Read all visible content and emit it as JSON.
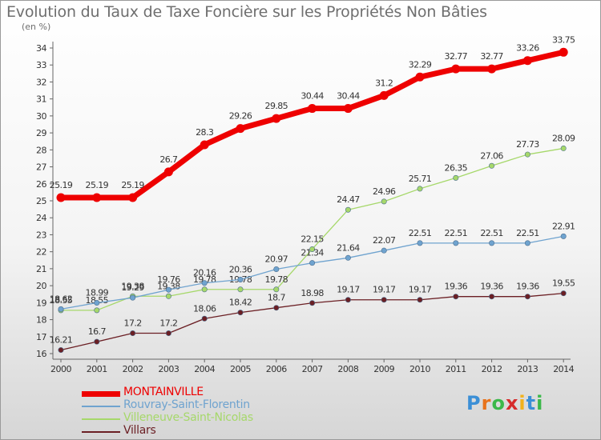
{
  "header": {
    "title": "Evolution du Taux de Taxe Foncière sur les Propriétés Non Bâties",
    "unit": "(en %)"
  },
  "logo": {
    "text": "Proxiti",
    "letter_colors": [
      "#3b8fd6",
      "#e8731c",
      "#3bb84a",
      "#d62b2b",
      "#f2b21c",
      "#3b8fd6",
      "#3bb84a"
    ]
  },
  "chart_data": {
    "type": "line",
    "title": "Evolution du Taux de Taxe Foncière sur les Propriétés Non Bâties",
    "ylabel": "(en %)",
    "xlabel": "",
    "x": [
      "2000",
      "2001",
      "2002",
      "2003",
      "2004",
      "2005",
      "2006",
      "2007",
      "2008",
      "2009",
      "2010",
      "2011",
      "2012",
      "2013",
      "2014"
    ],
    "ylim": [
      16,
      34
    ],
    "yticks": [
      "16",
      "17",
      "18",
      "19",
      "20",
      "21",
      "22",
      "23",
      "24",
      "25",
      "26",
      "27",
      "28",
      "29",
      "30",
      "31",
      "32",
      "33",
      "34"
    ],
    "grid": false,
    "legend_position": "bottom-left",
    "series": [
      {
        "name": "MONTAINVILLE",
        "color": "#ee0000",
        "values": [
          25.19,
          25.19,
          25.19,
          26.7,
          28.3,
          29.26,
          29.85,
          30.44,
          30.44,
          31.2,
          32.29,
          32.77,
          32.77,
          33.26,
          33.75
        ],
        "labels": [
          "25.19",
          "25.19",
          "25.19",
          "26.7",
          "28.3",
          "29.26",
          "29.85",
          "30.44",
          "30.44",
          "31.2",
          "32.29",
          "32.77",
          "32.77",
          "33.26",
          "33.75"
        ]
      },
      {
        "name": "Rouvray-Saint-Florentin",
        "color": "#6fa3cf",
        "values": [
          18.62,
          18.99,
          19.29,
          19.76,
          20.16,
          20.36,
          20.97,
          21.34,
          21.64,
          22.07,
          22.51,
          22.51,
          22.51,
          22.51,
          22.91
        ],
        "labels": [
          "18.62",
          "18.99",
          "19.29",
          "19.76",
          "20.16",
          "20.36",
          "20.97",
          "21.34",
          "21.64",
          "22.07",
          "22.51",
          "22.51",
          "22.51",
          "22.51",
          "22.91"
        ]
      },
      {
        "name": "Villeneuve-Saint-Nicolas",
        "color": "#a6d86a",
        "values": [
          18.55,
          18.55,
          19.38,
          19.38,
          19.78,
          19.78,
          19.78,
          22.15,
          24.47,
          24.96,
          25.71,
          26.35,
          27.06,
          27.73,
          28.09
        ],
        "labels": [
          "18.55",
          "18.55",
          "19.38",
          "19.38",
          "19.78",
          "19.78",
          "19.78",
          "22.15",
          "24.47",
          "24.96",
          "25.71",
          "26.35",
          "27.06",
          "27.73",
          "28.09"
        ]
      },
      {
        "name": "Villars",
        "color": "#6b1f24",
        "values": [
          16.21,
          16.7,
          17.2,
          17.2,
          18.06,
          18.42,
          18.7,
          18.98,
          19.17,
          19.17,
          19.17,
          19.36,
          19.36,
          19.36,
          19.55
        ],
        "labels": [
          "16.21",
          "16.7",
          "17.2",
          "17.2",
          "18.06",
          "18.42",
          "18.7",
          "18.98",
          "19.17",
          "19.17",
          "19.17",
          "19.36",
          "19.36",
          "19.36",
          "19.55"
        ]
      }
    ]
  }
}
